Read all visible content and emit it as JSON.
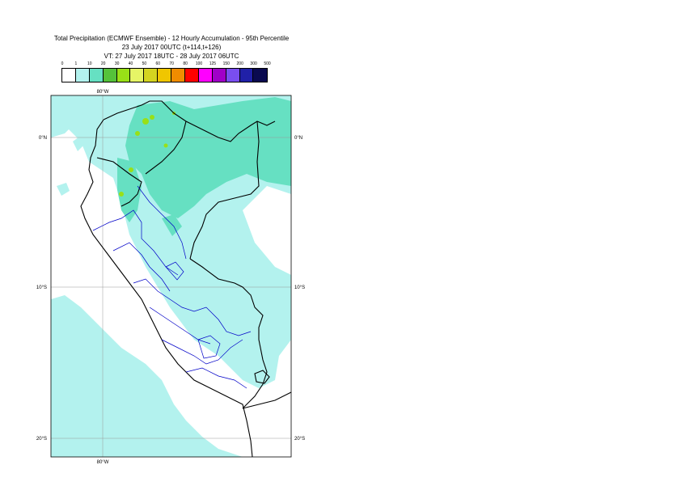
{
  "title": {
    "line1": "Total Precipitation (ECMWF Ensemble) - 12 Hourly Accumulation - 95th Percentile",
    "line2": "23 July 2017 00UTC (t+114,t+126)",
    "line3": "VT: 27 July 2017 18UTC - 28 July 2017 06UTC"
  },
  "legend": {
    "labels": [
      "0",
      "1",
      "10",
      "20",
      "30",
      "40",
      "50",
      "60",
      "70",
      "80",
      "100",
      "125",
      "150",
      "200",
      "300",
      "500"
    ],
    "colors": [
      "#ffffff",
      "#b3f2ee",
      "#66e0c2",
      "#55c23a",
      "#99e017",
      "#e6f566",
      "#d4d420",
      "#f0c600",
      "#f08c00",
      "#ff0000",
      "#ff00ff",
      "#a000c8",
      "#7a4ef0",
      "#2020a8",
      "#0a0a50"
    ]
  },
  "map": {
    "lon_label_top": "80°W",
    "lon_label_bottom": "80°W",
    "lat_labels": [
      "0°N",
      "10°S",
      "20°S"
    ],
    "ocean_color": "#ffffff",
    "light_precip_color": "#b3f2ee",
    "medium_precip_color": "#66e0c2",
    "heavy_precip_color": "#99e017",
    "border_color": "#000000",
    "region_border_color": "#0000c8"
  }
}
